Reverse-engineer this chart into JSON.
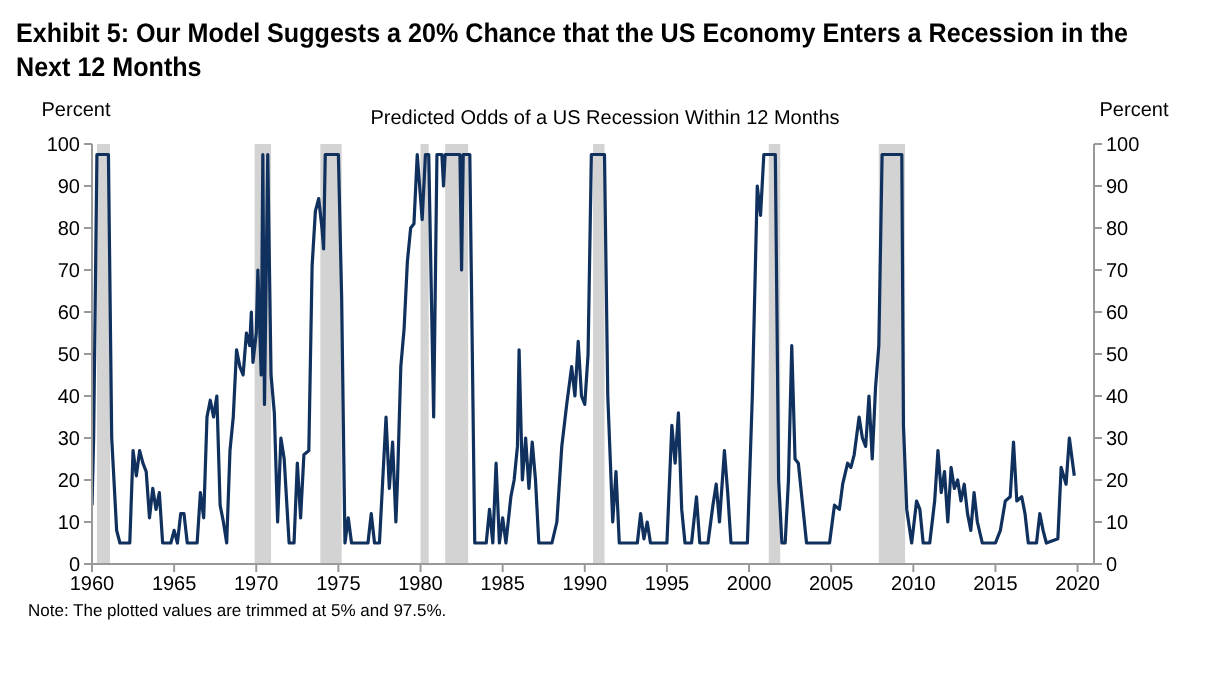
{
  "chart_data": {
    "type": "line",
    "title": "Exhibit 5: Our Model Suggests a 20% Chance that the US Economy Enters a Recession in the Next 12 Months",
    "subtitle": "Predicted Odds of a US Recession  Within 12 Months",
    "ylabel": "Percent",
    "y2label": "Percent",
    "annotations": [
      "Note: The plotted values are trimmed at 5% and 97.5%."
    ],
    "xlim": [
      1960,
      2021
    ],
    "xticks": [
      1960,
      1965,
      1970,
      1975,
      1980,
      1985,
      1990,
      1995,
      2000,
      2005,
      2010,
      2015,
      2020
    ],
    "ylim": [
      0,
      100
    ],
    "yticks": [
      0,
      10,
      20,
      30,
      40,
      50,
      60,
      70,
      80,
      90,
      100
    ],
    "y2lim": [
      0,
      100
    ],
    "y2ticks": [
      0,
      10,
      20,
      30,
      40,
      50,
      60,
      70,
      80,
      90,
      100
    ],
    "grid": false,
    "legend": false,
    "marker": "none",
    "line_style": "solid",
    "bands": [
      {
        "axis": "x",
        "from": 1960.3,
        "to": 1961.1,
        "color": "#d3d3d3"
      },
      {
        "axis": "x",
        "from": 1969.9,
        "to": 1970.9,
        "color": "#d3d3d3"
      },
      {
        "axis": "x",
        "from": 1973.9,
        "to": 1975.2,
        "color": "#d3d3d3"
      },
      {
        "axis": "x",
        "from": 1980,
        "to": 1980.5,
        "color": "#d3d3d3"
      },
      {
        "axis": "x",
        "from": 1981.5,
        "to": 1982.9,
        "color": "#d3d3d3"
      },
      {
        "axis": "x",
        "from": 1990.5,
        "to": 1991.2,
        "color": "#d3d3d3"
      },
      {
        "axis": "x",
        "from": 2001.2,
        "to": 2001.9,
        "color": "#d3d3d3"
      },
      {
        "axis": "x",
        "from": 2007.9,
        "to": 2009.5,
        "color": "#d3d3d3"
      }
    ],
    "series": [
      {
        "color": "#10305e",
        "x": [
          1960,
          1960.1,
          1960.3,
          1961,
          1961.2,
          1961.5,
          1961.7,
          1962.3,
          1962.5,
          1962.7,
          1962.9,
          1963.1,
          1963.3,
          1963.5,
          1963.7,
          1963.9,
          1964.1,
          1964.3,
          1964.8,
          1965,
          1965.2,
          1965.4,
          1965.6,
          1965.8,
          1966.4,
          1966.6,
          1966.8,
          1967,
          1967.2,
          1967.4,
          1967.6,
          1967.8,
          1968,
          1968.2,
          1968.4,
          1968.6,
          1968.8,
          1969,
          1969.2,
          1969.4,
          1969.6,
          1969.7,
          1969.8,
          1970,
          1970.1,
          1970.3,
          1970.4,
          1970.5,
          1970.7,
          1970.9,
          1971.1,
          1971.3,
          1971.5,
          1971.7,
          1972,
          1972.3,
          1972.5,
          1972.7,
          1972.9,
          1973.2,
          1973.4,
          1973.6,
          1973.8,
          1974,
          1974.1,
          1974.2,
          1975,
          1975.2,
          1975.4,
          1975.6,
          1975.8,
          1976.8,
          1977,
          1977.2,
          1977.5,
          1977.7,
          1977.9,
          1978.1,
          1978.3,
          1978.5,
          1978.6,
          1978.8,
          1979,
          1979.2,
          1979.4,
          1979.6,
          1979.8,
          1980.1,
          1980.3,
          1980.5,
          1980.8,
          1981,
          1981.3,
          1981.4,
          1981.5,
          1982.4,
          1982.5,
          1982.6,
          1983,
          1983.3,
          1984,
          1984.2,
          1984.4,
          1984.6,
          1984.8,
          1985,
          1985.2,
          1985.5,
          1985.7,
          1985.9,
          1986,
          1986.2,
          1986.4,
          1986.6,
          1986.8,
          1987,
          1987.2,
          1988,
          1988.3,
          1988.6,
          1988.9,
          1989.2,
          1989.4,
          1989.6,
          1989.8,
          1990,
          1990.2,
          1990.4,
          1991.2,
          1991.4,
          1991.7,
          1991.9,
          1992.1,
          1993.2,
          1993.4,
          1993.6,
          1993.8,
          1994,
          1995,
          1995.3,
          1995.5,
          1995.7,
          1995.9,
          1996.1,
          1996.5,
          1996.8,
          1997,
          1997.5,
          1997.8,
          1998,
          1998.2,
          1998.5,
          1998.7,
          1998.9,
          1999.9,
          2000.2,
          2000.5,
          2000.7,
          2000.9,
          2001.6,
          2001.8,
          2002,
          2002.2,
          2002.4,
          2002.6,
          2002.8,
          2003,
          2003.5,
          2004.9,
          2005.2,
          2005.5,
          2005.7,
          2006,
          2006.2,
          2006.4,
          2006.7,
          2006.9,
          2007.1,
          2007.3,
          2007.5,
          2007.7,
          2007.9,
          2008.1,
          2009.3,
          2009.4,
          2009.6,
          2009.9,
          2010.2,
          2010.4,
          2010.6,
          2011,
          2011.3,
          2011.5,
          2011.7,
          2011.9,
          2012.1,
          2012.3,
          2012.5,
          2012.7,
          2012.9,
          2013.1,
          2013.3,
          2013.5,
          2013.7,
          2013.9,
          2014.2,
          2015,
          2015.3,
          2015.6,
          2015.9,
          2016.1,
          2016.3,
          2016.6,
          2016.8,
          2017,
          2017.5,
          2017.7,
          2017.9,
          2018.1,
          2018.8,
          2019,
          2019.3,
          2019.5,
          2019.8
        ],
        "values": [
          14,
          30,
          97.5,
          97.5,
          30,
          8,
          5,
          5,
          27,
          21,
          27,
          24,
          22,
          11,
          18,
          13,
          17,
          5,
          5,
          8,
          5,
          12,
          12,
          5,
          5,
          17,
          11,
          35,
          39,
          35,
          40,
          14,
          10,
          5,
          27,
          35,
          51,
          47,
          45,
          55,
          52,
          60,
          48,
          55,
          70,
          45,
          97.5,
          38,
          97.5,
          45,
          36,
          10,
          30,
          25,
          5,
          5,
          24,
          11,
          26,
          27,
          71,
          84,
          87,
          80,
          75,
          97.5,
          97.5,
          63,
          5,
          11,
          5,
          5,
          12,
          5,
          5,
          20,
          35,
          18,
          29,
          10,
          20,
          47,
          56,
          72,
          80,
          81,
          97.5,
          82,
          97.5,
          97.5,
          35,
          97.5,
          97.5,
          90,
          97.5,
          97.5,
          70,
          97.5,
          97.5,
          5,
          5,
          13,
          5,
          24,
          5,
          11,
          5,
          16,
          20,
          28,
          51,
          20,
          30,
          18,
          29,
          20,
          5,
          5,
          10,
          28,
          38,
          47,
          40,
          53,
          40,
          38,
          50,
          97.5,
          97.5,
          40,
          10,
          22,
          5,
          5,
          12,
          6,
          10,
          5,
          5,
          33,
          24,
          36,
          13,
          5,
          5,
          16,
          5,
          5,
          14,
          19,
          10,
          27,
          17,
          5,
          5,
          40,
          90,
          83,
          97.5,
          97.5,
          20,
          5,
          5,
          20,
          52,
          25,
          24,
          5,
          5,
          14,
          13,
          19,
          24,
          23,
          26,
          35,
          30,
          28,
          40,
          25,
          42,
          52,
          97.5,
          97.5,
          33,
          13,
          5,
          15,
          13,
          5,
          5,
          15,
          27,
          17,
          22,
          10,
          23,
          18,
          20,
          15,
          19,
          12,
          8,
          17,
          10,
          5,
          5,
          8,
          15,
          16,
          29,
          15,
          16,
          12,
          5,
          5,
          12,
          8,
          5,
          6,
          23,
          19,
          30,
          21
        ]
      }
    ]
  }
}
